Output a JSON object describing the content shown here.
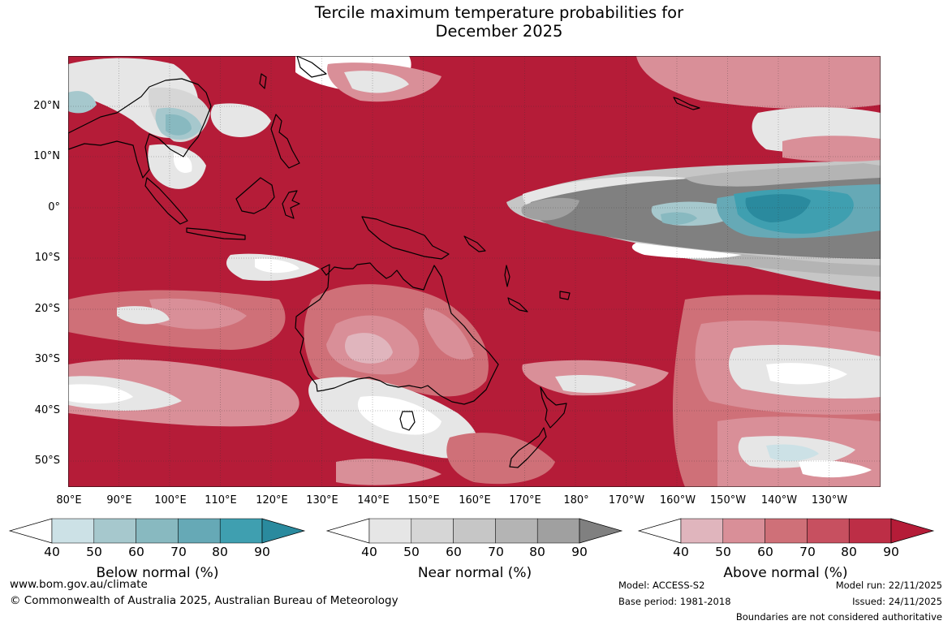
{
  "title": {
    "line1": "Tercile maximum temperature probabilities for",
    "line2": "December 2025"
  },
  "colors": {
    "above": [
      "#e0b5bd",
      "#d98f98",
      "#cf7078",
      "#c75060",
      "#bd2e46",
      "#b51c38"
    ],
    "near": [
      "#e6e6e6",
      "#d6d6d6",
      "#c6c6c6",
      "#b4b4b4",
      "#a0a0a0",
      "#808080"
    ],
    "below": [
      "#cce1e6",
      "#a6c8cd",
      "#88b9c0",
      "#66a9b6",
      "#3f9fb0",
      "#2a8a9e"
    ],
    "land_outline": "#000000",
    "grid": "#333333",
    "white": "#ffffff"
  },
  "map": {
    "latitude_labels": [
      "20°N",
      "10°N",
      "0°",
      "10°S",
      "20°S",
      "30°S",
      "40°S",
      "50°S"
    ],
    "longitude_labels": [
      "80°E",
      "90°E",
      "100°E",
      "110°E",
      "120°E",
      "130°E",
      "140°E",
      "150°E",
      "160°E",
      "170°E",
      "180°",
      "170°W",
      "160°W",
      "150°W",
      "140°W",
      "130°W"
    ],
    "lat_range": [
      -55,
      30
    ],
    "lon_range": [
      80,
      240
    ]
  },
  "colorbars": [
    {
      "key": "below",
      "title": "Below normal (%)",
      "ticks": [
        "40",
        "50",
        "60",
        "70",
        "80",
        "90"
      ]
    },
    {
      "key": "near",
      "title": "Near normal (%)",
      "ticks": [
        "40",
        "50",
        "60",
        "70",
        "80",
        "90"
      ]
    },
    {
      "key": "above",
      "title": "Above normal (%)",
      "ticks": [
        "40",
        "50",
        "60",
        "70",
        "80",
        "90"
      ]
    }
  ],
  "footer": {
    "website": "www.bom.gov.au/climate",
    "copyright": "© Commonwealth of Australia 2025, Australian Bureau of Meteorology",
    "model": "Model: ACCESS-S2",
    "base_period": "Base period: 1981-2018",
    "model_run": "Model run: 22/11/2025",
    "issued": "Issued: 24/11/2025",
    "disclaimer": "Boundaries are not considered authoritative"
  }
}
